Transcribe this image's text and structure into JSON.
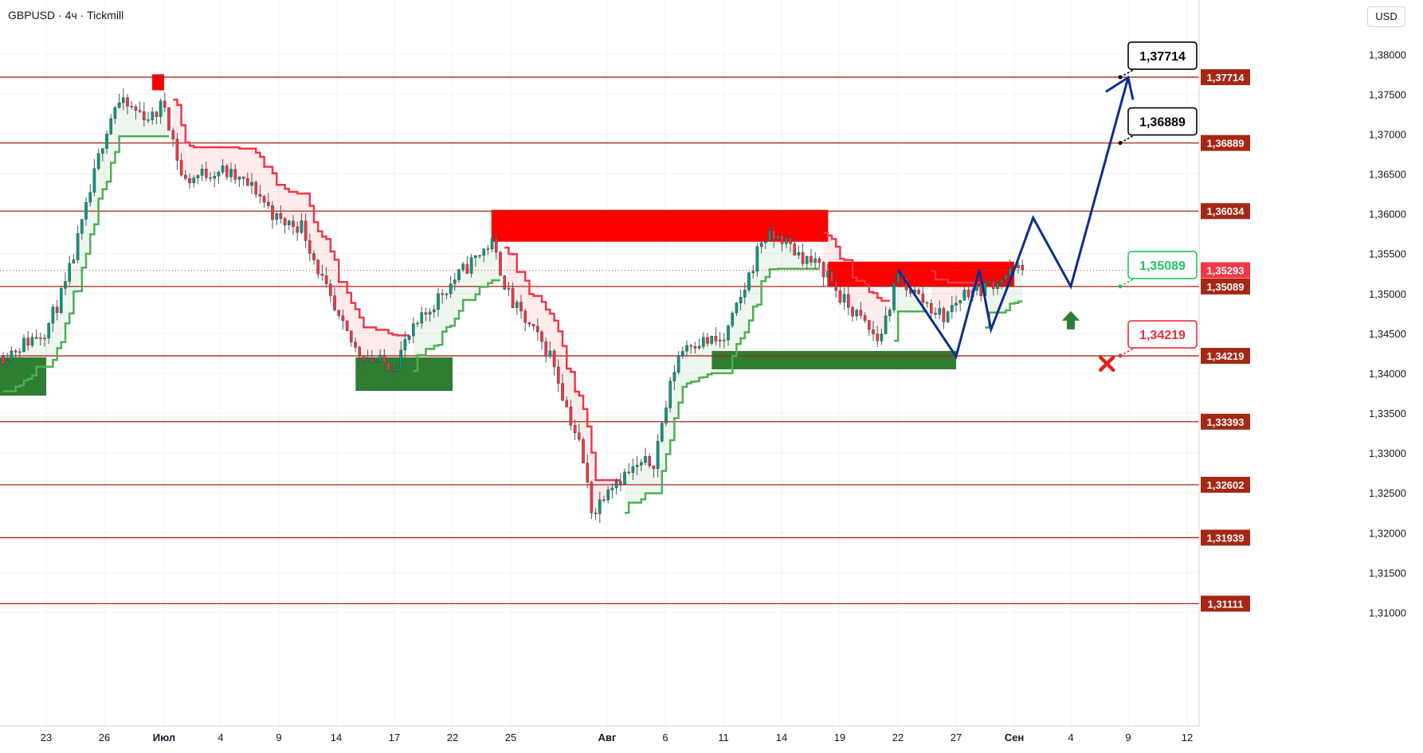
{
  "header": {
    "title": "GBPUSD · 4ч · Tickmill"
  },
  "currency_label": "USD",
  "colors": {
    "bull": "#089981",
    "bear": "#f23645",
    "resistance_line": "#a52714",
    "supertrend_up": "#4caf50",
    "supertrend_down": "#f23645",
    "supply_zone": "#ff0000",
    "demand_zone": "#2e7d32",
    "forecast": "#0d2e8f",
    "tag_black": "#000000",
    "tag_green": "#22c55e",
    "tag_red": "#ef2b3b"
  },
  "chart_data": {
    "type": "candlestick",
    "symbol": "GBPUSD",
    "timeframe": "4ч",
    "broker": "Tickmill",
    "ylim": [
      1.3095,
      1.3825
    ],
    "y_ticks": [
      "1,38000",
      "1,37500",
      "1,37000",
      "1,36500",
      "1,36000",
      "1,35500",
      "1,35000",
      "1,34500",
      "1,34000",
      "1,33500",
      "1,33000",
      "1,32500",
      "1,32000",
      "1,31500",
      "1,31000"
    ],
    "x_ticks": [
      "23",
      "26",
      "Июл",
      "4",
      "9",
      "14",
      "17",
      "22",
      "25",
      "Авг",
      "6",
      "11",
      "14",
      "19",
      "22",
      "27",
      "Сен",
      "4",
      "9",
      "12"
    ],
    "current_price": {
      "value": 1.35293,
      "label": "1,35293"
    },
    "levels": [
      {
        "value": 1.37714,
        "label": "1,37714"
      },
      {
        "value": 1.36889,
        "label": "1,36889"
      },
      {
        "value": 1.36034,
        "label": "1,36034"
      },
      {
        "value": 1.35089,
        "label": "1,35089"
      },
      {
        "value": 1.34219,
        "label": "1,34219"
      },
      {
        "value": 1.33393,
        "label": "1,33393"
      },
      {
        "value": 1.32602,
        "label": "1,32602"
      },
      {
        "value": 1.31939,
        "label": "1,31939"
      },
      {
        "value": 1.31111,
        "label": "1,31111"
      }
    ],
    "targets": [
      {
        "label": "1,37714",
        "value": 1.37714,
        "style": "black"
      },
      {
        "label": "1,36889",
        "value": 1.36889,
        "style": "black"
      },
      {
        "label": "1,35089",
        "value": 1.35089,
        "style": "green"
      },
      {
        "label": "1,34219",
        "value": 1.34219,
        "style": "red"
      }
    ],
    "series": [
      {
        "name": "close_path",
        "points": [
          [
            "Jun 20",
            1.341
          ],
          [
            "Jun 23",
            1.3455
          ],
          [
            "Jun 24",
            1.351
          ],
          [
            "Jun 25",
            1.36
          ],
          [
            "Jun 26",
            1.37
          ],
          [
            "Jun 27",
            1.374
          ],
          [
            "Jun 30",
            1.372
          ],
          [
            "Jul 1",
            1.374
          ],
          [
            "Jul 2",
            1.364
          ],
          [
            "Jul 3",
            1.365
          ],
          [
            "Jul 4",
            1.3655
          ],
          [
            "Jul 7",
            1.363
          ],
          [
            "Jul 9",
            1.359
          ],
          [
            "Jul 11",
            1.3585
          ],
          [
            "Jul 14",
            1.347
          ],
          [
            "Jul 15",
            1.343
          ],
          [
            "Jul 16",
            1.3415
          ],
          [
            "Jul 17",
            1.341
          ],
          [
            "Jul 18",
            1.344
          ],
          [
            "Jul 21",
            1.35
          ],
          [
            "Jul 22",
            1.3515
          ],
          [
            "Jul 23",
            1.354
          ],
          [
            "Jul 24",
            1.3565
          ],
          [
            "Jul 25",
            1.349
          ],
          [
            "Jul 28",
            1.342
          ],
          [
            "Jul 29",
            1.336
          ],
          [
            "Jul 30",
            1.331
          ],
          [
            "Jul 31",
            1.322
          ],
          [
            "Aug 1",
            1.326
          ],
          [
            "Aug 4",
            1.3285
          ],
          [
            "Aug 5",
            1.329
          ],
          [
            "Aug 6",
            1.3355
          ],
          [
            "Aug 7",
            1.342
          ],
          [
            "Aug 8",
            1.344
          ],
          [
            "Aug 11",
            1.344
          ],
          [
            "Aug 12",
            1.35
          ],
          [
            "Aug 13",
            1.357
          ],
          [
            "Aug 14",
            1.357
          ],
          [
            "Aug 15",
            1.3555
          ],
          [
            "Aug 18",
            1.3525
          ],
          [
            "Aug 19",
            1.3495
          ],
          [
            "Aug 20",
            1.347
          ],
          [
            "Aug 21",
            1.344
          ],
          [
            "Aug 22",
            1.352
          ],
          [
            "Aug 25",
            1.348
          ],
          [
            "Aug 26",
            1.347
          ],
          [
            "Aug 27",
            1.349
          ],
          [
            "Aug 28",
            1.3505
          ],
          [
            "Aug 29",
            1.3505
          ],
          [
            "Sep 1",
            1.3529
          ]
        ]
      }
    ],
    "forecast_path": [
      [
        "Aug 22",
        1.353
      ],
      [
        "Aug 27",
        1.3421
      ],
      [
        "Aug 29",
        1.353
      ],
      [
        "Aug 30",
        1.3455
      ],
      [
        "Sep 1",
        1.353
      ],
      [
        "Sep 2",
        1.3595
      ],
      [
        "Sep 4",
        1.3509
      ],
      [
        "Sep 9",
        1.3771
      ]
    ]
  }
}
